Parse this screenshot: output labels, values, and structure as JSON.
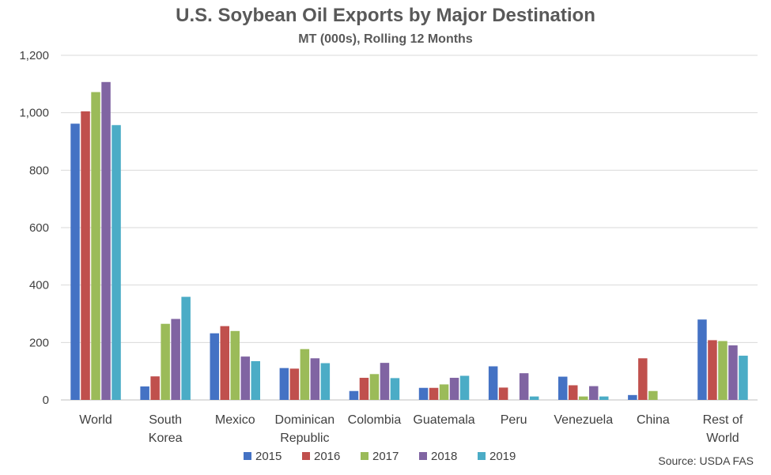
{
  "chart_data": {
    "type": "bar",
    "title": "U.S. Soybean Oil Exports by Major Destination",
    "subtitle": "MT (000s), Rolling 12 Months",
    "xlabel": "",
    "ylabel": "",
    "ylim": [
      0,
      1200
    ],
    "yticks": [
      0,
      200,
      400,
      600,
      800,
      1000,
      1200
    ],
    "ytick_labels": [
      "0",
      "200",
      "400",
      "600",
      "800",
      "1,000",
      "1,200"
    ],
    "grid": true,
    "legend": "bottom",
    "categories": [
      [
        "World"
      ],
      [
        "South",
        "Korea"
      ],
      [
        "Mexico"
      ],
      [
        "Dominican",
        "Republic"
      ],
      [
        "Colombia"
      ],
      [
        "Guatemala"
      ],
      [
        "Peru"
      ],
      [
        "Venezuela"
      ],
      [
        "China"
      ],
      [
        "Rest of",
        "World"
      ]
    ],
    "series": [
      {
        "name": "2015",
        "color": "#4472C4",
        "values": [
          962,
          47,
          232,
          111,
          31,
          42,
          117,
          81,
          17,
          280
        ]
      },
      {
        "name": "2016",
        "color": "#C0504D",
        "values": [
          1005,
          82,
          257,
          109,
          77,
          42,
          43,
          51,
          145,
          208
        ]
      },
      {
        "name": "2017",
        "color": "#9BBB59",
        "values": [
          1072,
          265,
          240,
          177,
          90,
          54,
          0,
          12,
          31,
          205
        ]
      },
      {
        "name": "2018",
        "color": "#8064A2",
        "values": [
          1107,
          282,
          151,
          145,
          129,
          77,
          93,
          48,
          0,
          190
        ]
      },
      {
        "name": "2019",
        "color": "#4BACC6",
        "values": [
          957,
          359,
          135,
          128,
          76,
          84,
          12,
          12,
          0,
          154
        ]
      }
    ],
    "source": "Source: USDA FAS"
  }
}
